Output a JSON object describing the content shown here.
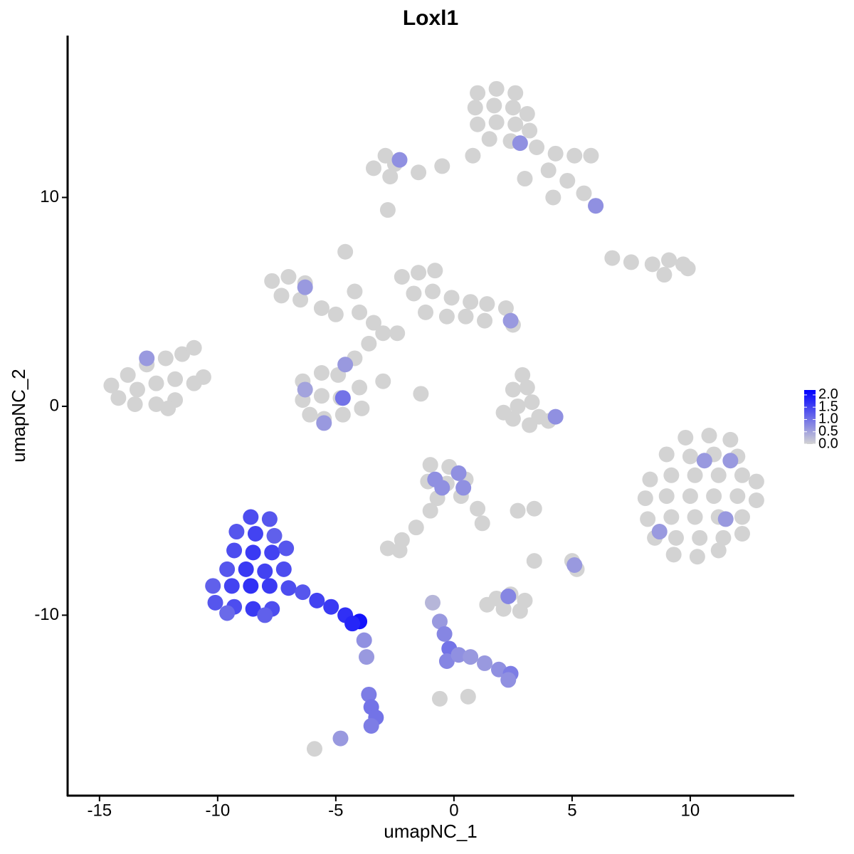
{
  "chart_data": {
    "type": "scatter",
    "title": "Loxl1",
    "x_label": "umapNC_1",
    "y_label": "umapNC_2",
    "xlim": [
      -16.35,
      14.37
    ],
    "ylim": [
      -18.64,
      17.75
    ],
    "xticks": [
      -15,
      -10,
      -5,
      0,
      5,
      10
    ],
    "yticks": [
      -10,
      0,
      10
    ],
    "colors": [
      "#d3d3d3",
      "#0000ff"
    ],
    "colorlim": [
      0,
      2.2
    ],
    "colorticks": [
      {
        "value": 0,
        "label": "0.0"
      },
      {
        "value": 0.5,
        "label": "0.5"
      },
      {
        "value": 1,
        "label": "1.0"
      },
      {
        "value": 1.5,
        "label": "1.5"
      },
      {
        "value": 2,
        "label": "2.0"
      }
    ],
    "x": [
      1.0,
      1.8,
      2.6,
      0.9,
      1.7,
      2.5,
      3.1,
      1.0,
      1.8,
      2.6,
      3.2,
      1.5,
      2.4,
      3.5,
      4.3,
      5.1,
      5.8,
      4.0,
      4.8,
      5.5,
      6.0,
      4.2,
      3.0,
      0.8,
      -0.5,
      -1.5,
      -2.5,
      -3.4,
      -2.9,
      -2.7,
      -2.8,
      2.8,
      -2.3,
      6.0,
      -7.7,
      -7.0,
      -6.3,
      -7.3,
      -6.5,
      -5.6,
      -5.0,
      -4.6,
      -4.2,
      -4.0,
      -3.4,
      -3.0,
      -2.2,
      -1.5,
      -0.8,
      -1.7,
      -0.9,
      -0.1,
      0.7,
      1.4,
      2.2,
      2.5,
      -1.2,
      -0.3,
      0.5,
      1.3,
      -2.4,
      -3.6,
      -4.2,
      -6.4,
      -5.6,
      -4.9,
      -6.4,
      -5.6,
      -4.8,
      -4.0,
      -3.9,
      -4.7,
      -5.5,
      -6.1,
      -3.0,
      -1.4,
      -6.3,
      -4.6,
      -4.7,
      -6.3,
      2.4,
      -5.5,
      -14.5,
      -13.8,
      -13.0,
      -12.2,
      -11.5,
      -11.0,
      -14.2,
      -13.4,
      -12.6,
      -11.8,
      -11.0,
      -10.6,
      -13.5,
      -12.6,
      -11.8,
      -12.1,
      -13.0,
      9.8,
      10.8,
      11.7,
      9.0,
      10.0,
      11.0,
      12.0,
      8.3,
      9.2,
      10.2,
      11.2,
      12.2,
      12.8,
      8.1,
      9.0,
      10.0,
      11.0,
      12.0,
      12.8,
      8.2,
      9.2,
      10.2,
      11.2,
      12.2,
      8.5,
      9.4,
      10.4,
      11.4,
      12.2,
      9.3,
      10.3,
      11.2,
      10.6,
      11.7,
      8.7,
      11.5,
      2.5,
      3.1,
      3.3,
      2.7,
      3.6,
      2.5,
      3.2,
      4.0,
      2.1,
      4.3,
      2.9,
      6.7,
      7.5,
      8.4,
      9.1,
      9.7,
      8.9,
      9.9,
      -1.0,
      -0.2,
      -1.1,
      -0.3,
      0.5,
      -0.7,
      0.3,
      1.0,
      1.2,
      -1.0,
      -1.6,
      -2.2,
      -2.8,
      -2.3,
      2.7,
      3.4,
      -0.8,
      0.2,
      -0.5,
      0.4,
      1.8,
      2.4,
      3.0,
      2.1,
      2.8,
      1.4,
      3.4,
      5.0,
      5.2,
      2.3,
      5.1,
      -0.9,
      -0.6,
      -0.4,
      -0.2,
      -0.3,
      0.2,
      0.7,
      1.3,
      1.9,
      2.4,
      2.3,
      0.6,
      -8.6,
      -7.8,
      -9.2,
      -8.4,
      -7.6,
      -9.3,
      -8.5,
      -7.7,
      -7.1,
      -9.6,
      -8.8,
      -8.0,
      -7.2,
      -10.2,
      -9.4,
      -8.6,
      -7.8,
      -7.0,
      -6.4,
      -10.1,
      -9.3,
      -8.5,
      -7.7,
      -8.0,
      -9.6,
      -5.8,
      -5.2,
      -4.6,
      -4.0,
      -4.3,
      -3.8,
      -3.7,
      -3.6,
      -3.5,
      -3.3,
      -3.5,
      -4.8,
      -5.9,
      -0.6
    ],
    "y": [
      15.0,
      15.2,
      15.0,
      14.3,
      14.4,
      14.3,
      14.0,
      13.5,
      13.6,
      13.5,
      13.2,
      12.8,
      12.7,
      12.4,
      12.1,
      12.0,
      12.0,
      11.3,
      10.8,
      10.2,
      9.6,
      10.0,
      10.9,
      12.0,
      11.5,
      11.2,
      11.6,
      11.4,
      12.0,
      11.0,
      9.4,
      12.6,
      11.8,
      9.6,
      6.0,
      6.2,
      5.9,
      5.3,
      5.1,
      4.7,
      4.4,
      7.4,
      5.5,
      4.5,
      4.0,
      3.5,
      6.2,
      6.4,
      6.5,
      5.4,
      5.5,
      5.2,
      5.0,
      4.9,
      4.7,
      3.9,
      4.5,
      4.3,
      4.3,
      4.1,
      3.5,
      3.0,
      2.3,
      1.2,
      1.6,
      1.5,
      0.3,
      0.5,
      0.4,
      0.9,
      -0.1,
      -0.4,
      -0.6,
      -0.4,
      1.2,
      0.6,
      5.7,
      2.0,
      0.4,
      0.8,
      4.1,
      -0.8,
      1.0,
      1.5,
      2.0,
      2.3,
      2.5,
      2.8,
      0.4,
      0.8,
      1.1,
      1.3,
      1.1,
      1.4,
      0.1,
      0.1,
      0.3,
      -0.1,
      2.3,
      -1.5,
      -1.4,
      -1.6,
      -2.3,
      -2.4,
      -2.3,
      -2.4,
      -3.5,
      -3.3,
      -3.3,
      -3.3,
      -3.3,
      -3.6,
      -4.4,
      -4.3,
      -4.3,
      -4.3,
      -4.3,
      -4.5,
      -5.4,
      -5.3,
      -5.3,
      -5.3,
      -5.3,
      -6.3,
      -6.3,
      -6.3,
      -6.3,
      -6.1,
      -7.1,
      -7.2,
      -6.9,
      -2.6,
      -2.6,
      -6.0,
      -5.4,
      0.8,
      0.9,
      0.2,
      0.0,
      -0.5,
      -0.6,
      -0.9,
      -0.7,
      -0.3,
      -0.5,
      1.5,
      7.1,
      6.9,
      6.8,
      7.0,
      6.8,
      6.3,
      6.6,
      -2.8,
      -2.9,
      -3.6,
      -3.7,
      -3.5,
      -4.4,
      -4.3,
      -4.9,
      -5.6,
      -5.0,
      -5.8,
      -6.4,
      -6.8,
      -6.9,
      -5.0,
      -4.9,
      -3.5,
      -3.2,
      -3.9,
      -3.9,
      -9.2,
      -9.0,
      -9.3,
      -9.7,
      -9.8,
      -9.5,
      -7.4,
      -7.4,
      -7.8,
      -9.1,
      -7.6,
      -9.4,
      -10.3,
      -10.9,
      -11.6,
      -12.2,
      -11.9,
      -12.0,
      -12.3,
      -12.6,
      -12.8,
      -13.1,
      -13.9,
      -5.3,
      -5.4,
      -6.0,
      -6.1,
      -6.2,
      -6.9,
      -7.0,
      -7.0,
      -6.8,
      -7.8,
      -7.8,
      -7.9,
      -7.8,
      -8.6,
      -8.6,
      -8.6,
      -8.6,
      -8.7,
      -8.9,
      -9.4,
      -9.6,
      -9.7,
      -9.7,
      -10.0,
      -9.9,
      -9.3,
      -9.6,
      -10.0,
      -10.3,
      -10.4,
      -11.2,
      -12.0,
      -13.8,
      -14.4,
      -14.9,
      -15.3,
      -15.9,
      -16.4,
      -14.0
    ],
    "values": [
      0,
      0,
      0,
      0,
      0,
      0,
      0,
      0,
      0,
      0,
      0,
      0,
      0,
      0,
      0,
      0,
      0,
      0,
      0,
      0,
      0,
      0,
      0,
      0,
      0,
      0,
      0,
      0,
      0,
      0,
      0,
      0.7,
      0.7,
      0.7,
      0,
      0,
      0,
      0,
      0,
      0,
      0,
      0,
      0,
      0,
      0,
      0,
      0,
      0,
      0,
      0,
      0,
      0,
      0,
      0,
      0,
      0,
      0,
      0,
      0,
      0,
      0,
      0,
      0,
      0,
      0,
      0,
      0,
      0,
      0,
      0,
      0,
      0,
      0,
      0,
      0,
      0,
      0.6,
      0.6,
      1.0,
      0.5,
      0.6,
      0.6,
      0,
      0,
      0,
      0,
      0,
      0,
      0,
      0,
      0,
      0,
      0,
      0,
      0,
      0,
      0,
      0,
      0.6,
      0,
      0,
      0,
      0,
      0,
      0,
      0,
      0,
      0,
      0,
      0,
      0,
      0,
      0,
      0,
      0,
      0,
      0,
      0,
      0,
      0,
      0,
      0,
      0,
      0,
      0,
      0,
      0,
      0,
      0,
      0,
      0,
      0.6,
      0.6,
      0.6,
      0.6,
      0,
      0,
      0,
      0,
      0,
      0,
      0,
      0,
      0,
      0.7,
      0,
      0,
      0,
      0,
      0,
      0,
      0,
      0,
      0,
      0,
      0,
      0,
      0,
      0,
      0,
      0,
      0,
      0,
      0,
      0,
      0,
      0,
      0,
      0,
      0.7,
      0.7,
      0.7,
      0.7,
      0,
      0,
      0,
      0,
      0,
      0,
      0,
      0,
      0,
      0.8,
      0.6,
      0.3,
      0.6,
      0.8,
      1.0,
      0.8,
      0.7,
      0.6,
      0.6,
      0.7,
      0.9,
      0.7,
      0,
      1.4,
      1.3,
      1.3,
      1.5,
      1.2,
      1.4,
      1.6,
      1.5,
      1.3,
      1.3,
      1.6,
      1.5,
      1.4,
      1.2,
      1.5,
      1.7,
      1.6,
      1.4,
      1.3,
      1.3,
      1.4,
      1.6,
      1.4,
      1.2,
      1.1,
      1.5,
      1.6,
      1.7,
      2.0,
      1.8,
      0.7,
      0.6,
      0.9,
      1.0,
      1.0,
      0.9,
      0.6,
      0,
      0
    ]
  }
}
